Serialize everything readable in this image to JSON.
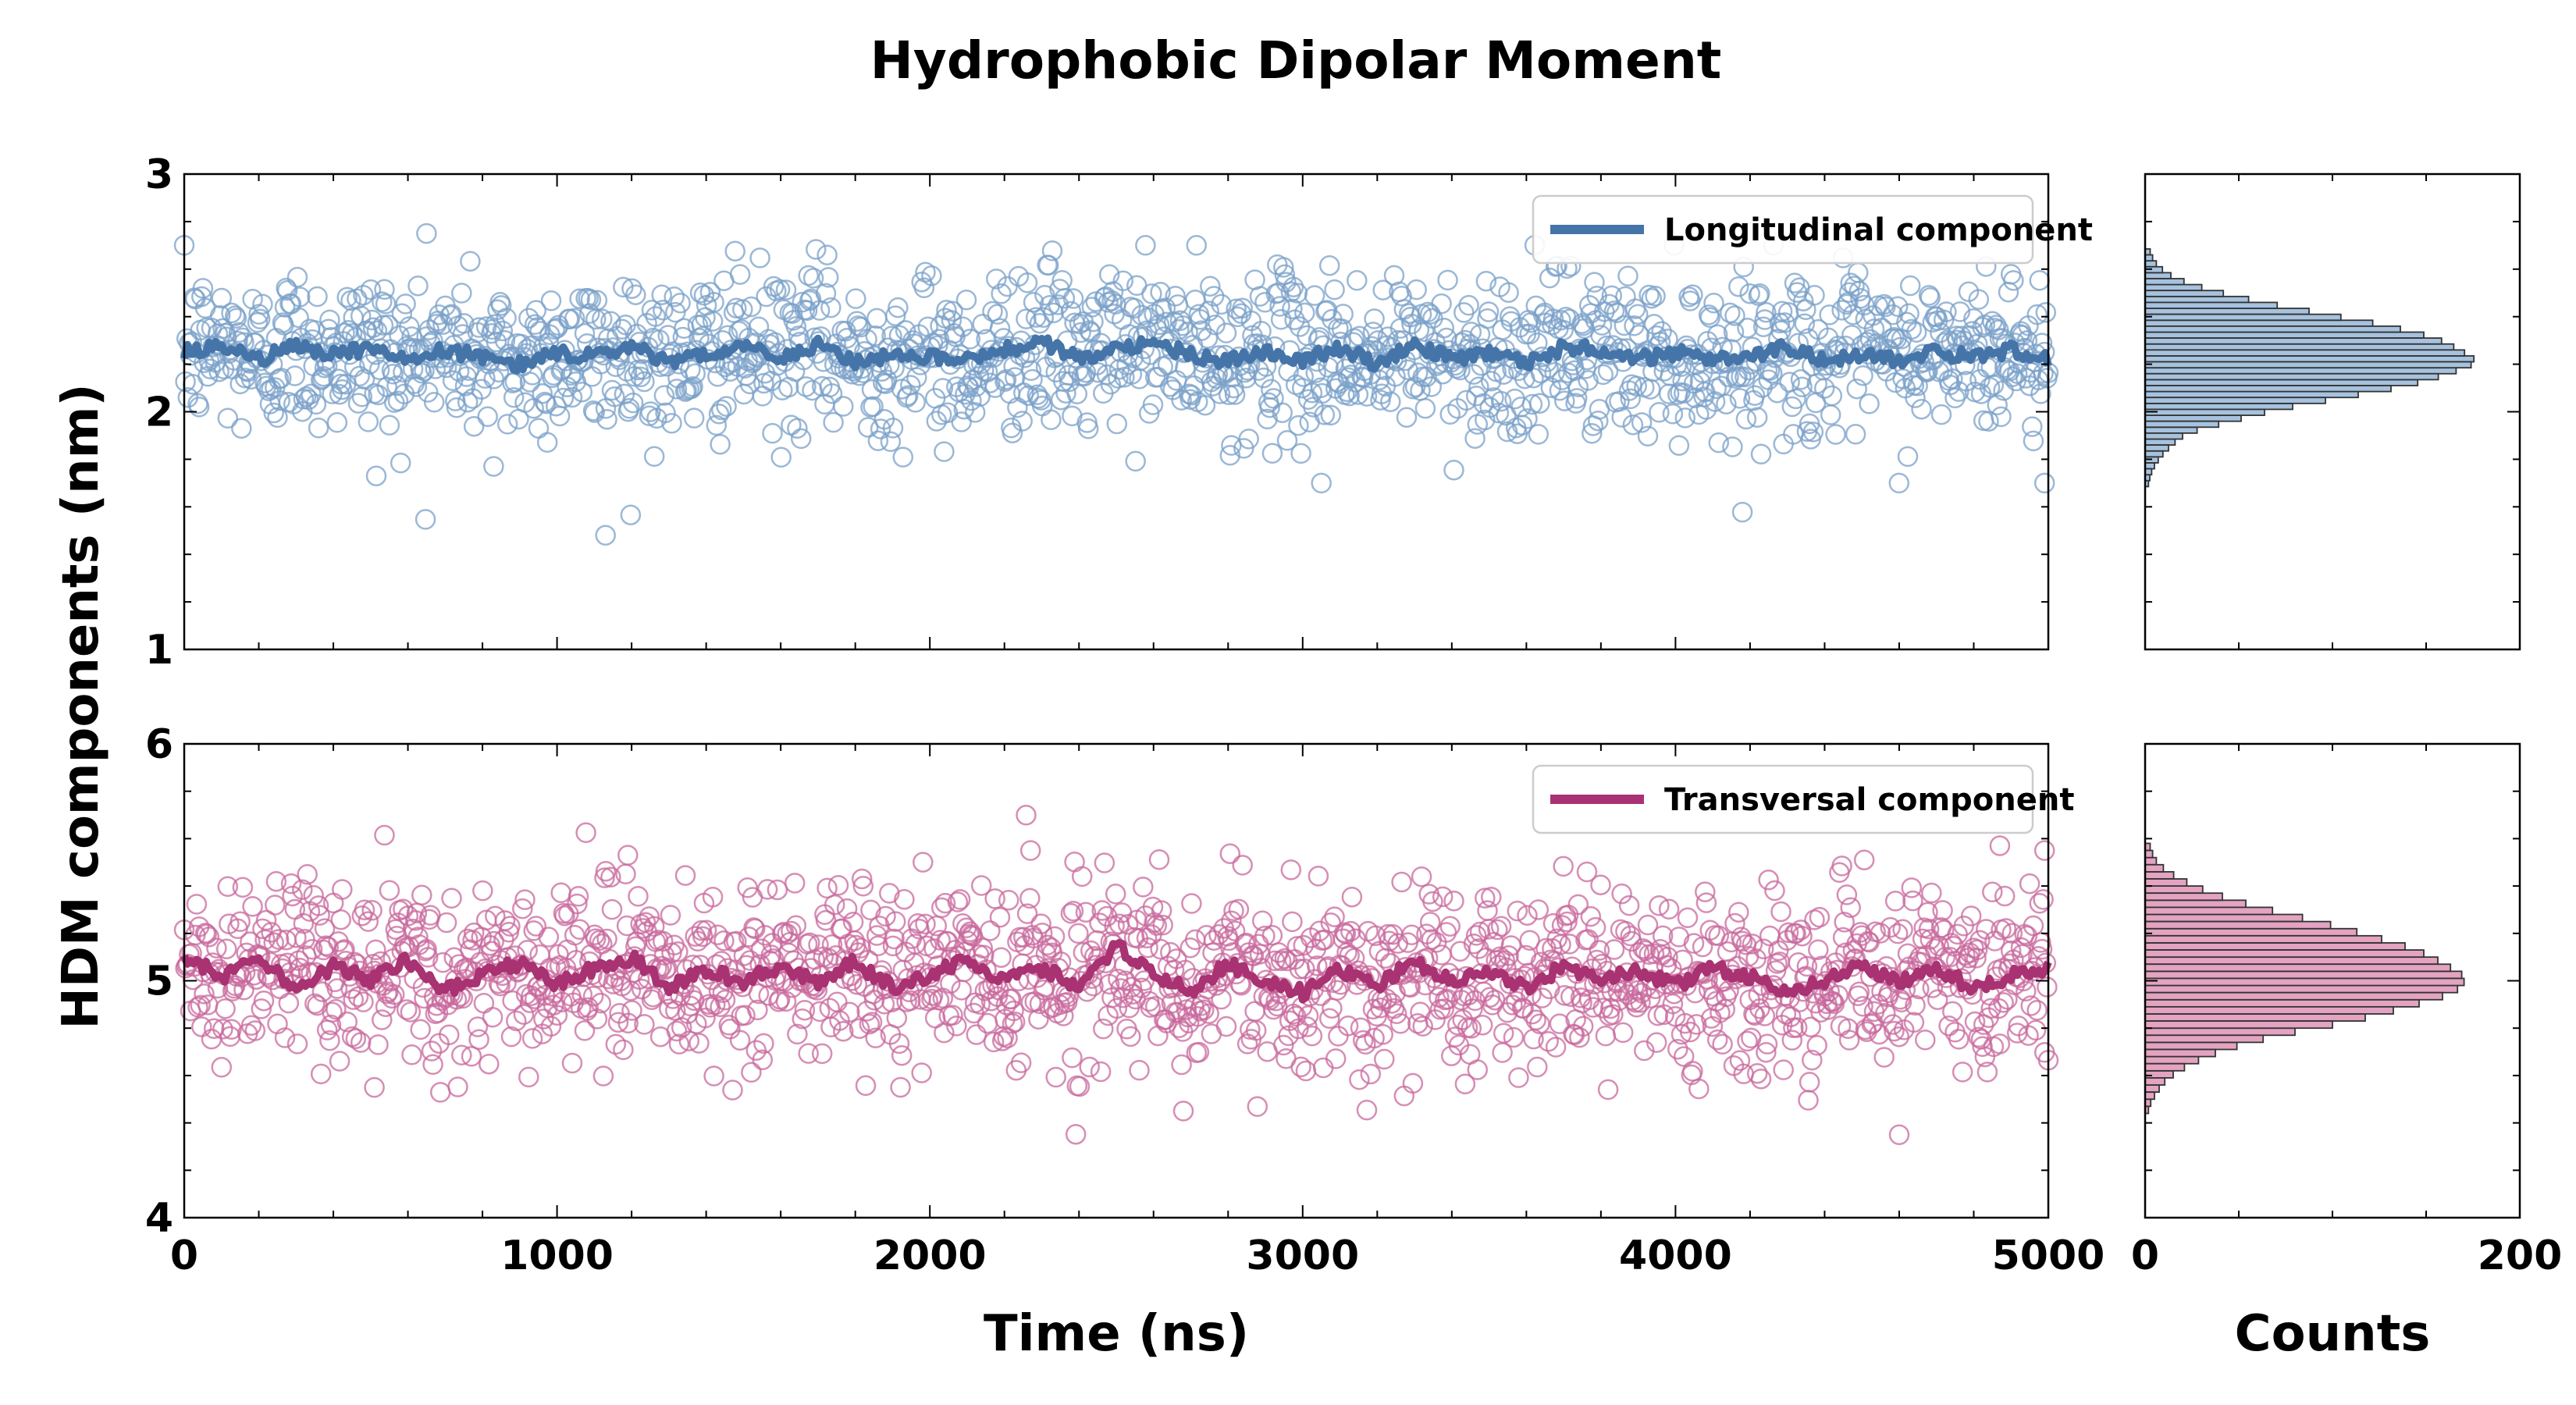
{
  "title": "Hydrophobic Dipolar Moment",
  "y_label": "HDM components (nm)",
  "x_label_time": "Time (ns)",
  "x_label_counts": "Counts",
  "colors": {
    "longitudinal_line": "#4575a8",
    "longitudinal_marker": "#7aa0c8",
    "longitudinal_hist": "#a6c2de",
    "transversal_line": "#a83272",
    "transversal_marker": "#c8689c",
    "transversal_hist": "#e3a3c1"
  },
  "chart_data": [
    {
      "type": "scatter",
      "panel": "top-time-series",
      "series": [
        {
          "name": "Longitudinal component",
          "kind": "running-average line",
          "x": [
            0,
            100,
            200,
            300,
            400,
            500,
            600,
            700,
            800,
            900,
            1000,
            1100,
            1200,
            1300,
            1400,
            1500,
            1600,
            1700,
            1800,
            1900,
            2000,
            2100,
            2200,
            2300,
            2400,
            2500,
            2600,
            2700,
            2800,
            2900,
            3000,
            3100,
            3200,
            3300,
            3400,
            3500,
            3600,
            3700,
            3800,
            3900,
            4000,
            4100,
            4200,
            4300,
            4400,
            4500,
            4600,
            4700,
            4800,
            4900,
            5000
          ],
          "values": [
            2.25,
            2.27,
            2.22,
            2.28,
            2.24,
            2.27,
            2.21,
            2.26,
            2.23,
            2.2,
            2.25,
            2.23,
            2.28,
            2.2,
            2.25,
            2.27,
            2.23,
            2.28,
            2.21,
            2.24,
            2.23,
            2.22,
            2.26,
            2.3,
            2.22,
            2.27,
            2.29,
            2.24,
            2.21,
            2.26,
            2.22,
            2.27,
            2.2,
            2.28,
            2.22,
            2.25,
            2.2,
            2.27,
            2.26,
            2.22,
            2.25,
            2.21,
            2.24,
            2.27,
            2.22,
            2.24,
            2.21,
            2.25,
            2.23,
            2.26,
            2.22
          ]
        },
        {
          "name": "",
          "kind": "raw samples (open circles)",
          "mean": 2.23,
          "spread_sd": 0.17,
          "notable_points": [
            [
              650,
              2.75
            ],
            [
              1130,
              1.48
            ],
            [
              3050,
              1.7
            ],
            [
              4990,
              1.7
            ],
            [
              515,
              1.73
            ],
            [
              830,
              1.77
            ]
          ]
        }
      ],
      "xlim": [
        0,
        5000
      ],
      "ylim": [
        1,
        3
      ],
      "x_ticks": [
        "0",
        "1000",
        "2000",
        "3000",
        "4000",
        "5000"
      ],
      "y_ticks": [
        "1",
        "2",
        "3"
      ],
      "legend_placement": "top-right",
      "grid": false
    },
    {
      "type": "bar",
      "orientation": "horizontal",
      "panel": "top-histogram",
      "xlim": [
        0,
        200
      ],
      "bin_centers": [
        1.71,
        1.76,
        1.81,
        1.86,
        1.91,
        1.96,
        2.01,
        2.06,
        2.11,
        2.16,
        2.21,
        2.26,
        2.31,
        2.36,
        2.41,
        2.46,
        2.51,
        2.56,
        2.61,
        2.66
      ],
      "counts": [
        2,
        4,
        8,
        14,
        22,
        45,
        70,
        105,
        140,
        162,
        178,
        168,
        155,
        130,
        96,
        62,
        35,
        16,
        7,
        3
      ]
    },
    {
      "type": "scatter",
      "panel": "bottom-time-series",
      "series": [
        {
          "name": "Transversal component",
          "kind": "running-average line",
          "x": [
            0,
            100,
            200,
            300,
            400,
            500,
            600,
            700,
            800,
            900,
            1000,
            1100,
            1200,
            1300,
            1400,
            1500,
            1600,
            1700,
            1800,
            1900,
            2000,
            2100,
            2200,
            2300,
            2400,
            2500,
            2600,
            2700,
            2800,
            2900,
            3000,
            3100,
            3200,
            3300,
            3400,
            3500,
            3600,
            3700,
            3800,
            3900,
            4000,
            4100,
            4200,
            4300,
            4400,
            4500,
            4600,
            4700,
            4800,
            4900,
            5000
          ],
          "values": [
            5.1,
            5.02,
            5.08,
            4.98,
            5.06,
            5.0,
            5.09,
            4.96,
            5.03,
            5.07,
            4.99,
            5.05,
            5.1,
            4.97,
            5.04,
            5.0,
            5.06,
            4.99,
            5.08,
            4.97,
            5.02,
            5.09,
            5.0,
            5.05,
            4.98,
            5.15,
            5.02,
            4.96,
            5.07,
            5.0,
            4.95,
            5.05,
            4.98,
            5.08,
            5.0,
            5.03,
            4.97,
            5.06,
            5.01,
            5.04,
            4.98,
            5.05,
            5.02,
            4.96,
            5.0,
            5.06,
            4.99,
            5.05,
            4.97,
            5.02,
            5.05
          ]
        },
        {
          "name": "",
          "kind": "raw samples (open circles)",
          "mean": 5.02,
          "spread_sd": 0.19,
          "notable_points": [
            [
              2270,
              5.55
            ],
            [
              1190,
              5.53
            ],
            [
              4870,
              5.57
            ],
            [
              4990,
              5.55
            ],
            [
              2680,
              4.45
            ],
            [
              4600,
              4.35
            ],
            [
              510,
              4.55
            ]
          ]
        }
      ],
      "xlim": [
        0,
        5000
      ],
      "ylim": [
        4,
        6
      ],
      "x_ticks": [
        "0",
        "1000",
        "2000",
        "3000",
        "4000",
        "5000"
      ],
      "y_ticks": [
        "4",
        "5",
        "6"
      ],
      "legend_placement": "top-right",
      "grid": false
    },
    {
      "type": "bar",
      "orientation": "horizontal",
      "panel": "bottom-histogram",
      "xlim": [
        0,
        200
      ],
      "x_ticks": [
        "0",
        "200"
      ],
      "bin_centers": [
        4.47,
        4.53,
        4.59,
        4.65,
        4.71,
        4.77,
        4.83,
        4.89,
        4.95,
        5.01,
        5.07,
        5.13,
        5.19,
        5.25,
        5.31,
        5.37,
        5.43,
        5.49,
        5.55
      ],
      "counts": [
        2,
        6,
        12,
        24,
        42,
        70,
        110,
        140,
        165,
        172,
        160,
        145,
        120,
        92,
        60,
        35,
        18,
        7,
        3
      ]
    }
  ]
}
